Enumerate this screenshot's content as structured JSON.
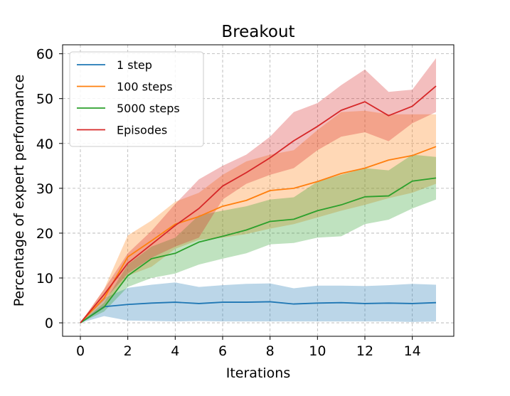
{
  "chart_data": {
    "type": "line",
    "title": "Breakout",
    "xlabel": "Iterations",
    "ylabel": "Percentage of expert performance",
    "xlim": [
      -0.75,
      15.75
    ],
    "ylim": [
      -3,
      62
    ],
    "xticks": [
      0,
      2,
      4,
      6,
      8,
      10,
      12,
      14
    ],
    "yticks": [
      0,
      10,
      20,
      30,
      40,
      50,
      60
    ],
    "grid": true,
    "legend_position": "upper-left",
    "x": [
      0,
      1,
      2,
      3,
      4,
      5,
      6,
      7,
      8,
      9,
      10,
      11,
      12,
      13,
      14,
      15
    ],
    "series": [
      {
        "name": "1 step",
        "color": "#1f77b4",
        "values": [
          0,
          3.6,
          4.1,
          4.4,
          4.6,
          4.3,
          4.6,
          4.6,
          4.7,
          4.2,
          4.4,
          4.5,
          4.3,
          4.4,
          4.3,
          4.5
        ],
        "band_lower": [
          0,
          1.5,
          0.5,
          0.4,
          0.3,
          0.4,
          0.3,
          0.3,
          0.3,
          0.3,
          0.3,
          0.3,
          0.3,
          0.3,
          0.2,
          0.3
        ],
        "band_upper": [
          0,
          5.5,
          7.8,
          8.5,
          9.0,
          8.0,
          8.4,
          8.7,
          8.8,
          7.7,
          8.3,
          8.3,
          8.2,
          8.4,
          8.7,
          8.5
        ]
      },
      {
        "name": "100 steps",
        "color": "#ff7f0e",
        "values": [
          0,
          5.5,
          14.7,
          18.3,
          22.0,
          23.7,
          26.0,
          27.3,
          29.5,
          30.0,
          31.5,
          33.3,
          34.5,
          36.3,
          37.3,
          39.3
        ],
        "band_lower": [
          0,
          3.5,
          10.5,
          12.5,
          16.5,
          18.5,
          19.0,
          19.8,
          21.0,
          22.0,
          23.5,
          25.0,
          26.3,
          27.8,
          29.0,
          31.0
        ],
        "band_upper": [
          0,
          7.5,
          19.5,
          22.8,
          27.0,
          29.0,
          33.0,
          36.0,
          37.5,
          38.5,
          43.0,
          47.0,
          47.3,
          46.5,
          46.5,
          46.5
        ]
      },
      {
        "name": "5000 steps",
        "color": "#2ca02c",
        "values": [
          0,
          3.5,
          10.5,
          14.3,
          15.5,
          18.0,
          19.3,
          20.7,
          22.6,
          23.1,
          25.0,
          26.3,
          28.1,
          28.3,
          31.6,
          32.3
        ],
        "band_lower": [
          0,
          2.5,
          8.0,
          10.0,
          11.0,
          13.0,
          14.3,
          15.5,
          17.5,
          17.8,
          19.0,
          19.3,
          22.0,
          23.0,
          25.5,
          27.5
        ],
        "band_upper": [
          0,
          4.5,
          13.0,
          17.0,
          19.0,
          24.0,
          25.0,
          26.0,
          27.5,
          28.0,
          31.5,
          33.0,
          34.5,
          34.0,
          37.5,
          37.0
        ]
      },
      {
        "name": "Episodes",
        "color": "#d62728",
        "values": [
          0,
          6.3,
          13.3,
          17.5,
          21.7,
          25.5,
          30.5,
          33.5,
          36.8,
          40.6,
          43.8,
          47.4,
          49.3,
          46.2,
          48.3,
          52.8
        ],
        "band_lower": [
          0,
          5.0,
          11.0,
          14.5,
          17.0,
          19.0,
          27.5,
          31.0,
          33.0,
          34.5,
          38.5,
          41.5,
          42.5,
          40.5,
          44.5,
          47.0
        ],
        "band_upper": [
          0,
          7.5,
          15.5,
          20.5,
          26.5,
          32.0,
          35.0,
          37.5,
          41.5,
          47.0,
          49.0,
          53.0,
          56.5,
          51.5,
          52.0,
          59.0
        ]
      }
    ]
  }
}
